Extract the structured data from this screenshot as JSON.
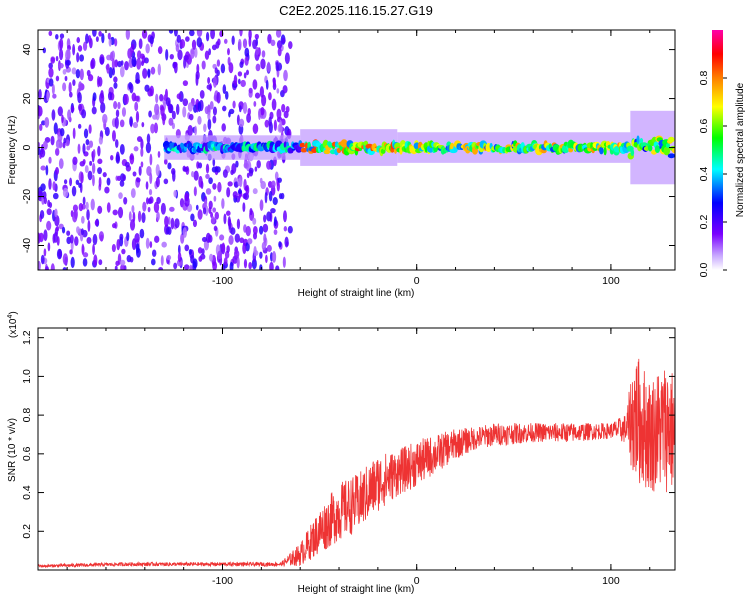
{
  "title": "C2E2.2025.116.15.27.G19",
  "colors": {
    "snr_line": "#ee3333",
    "colormap": [
      "#ffffff",
      "#7a00ff",
      "#0000ff",
      "#00ffff",
      "#00ff00",
      "#ffff00",
      "#ff8000",
      "#ff0000",
      "#ff00aa"
    ]
  },
  "chart_data": [
    {
      "type": "heatmap",
      "xlabel": "Height of straight line (km)",
      "ylabel": "Frequency (Hz)",
      "xlim": [
        -195,
        133
      ],
      "ylim": [
        -50,
        48
      ],
      "x_ticks": [
        -100,
        0,
        100
      ],
      "x_tick_labels": [
        "-100",
        "0",
        "100"
      ],
      "y_ticks": [
        -40,
        -20,
        0,
        20,
        40
      ],
      "y_tick_labels": [
        "-40",
        "-20",
        "0",
        "20",
        "40"
      ],
      "colorbar": {
        "label": "Normalized spectral amplitude",
        "range": [
          0,
          1
        ],
        "ticks": [
          0.0,
          0.2,
          0.4,
          0.6,
          0.8
        ],
        "tick_labels": [
          "0.0",
          "0.2",
          "0.4",
          "0.6",
          "0.8"
        ]
      },
      "regions": [
        {
          "x": [
            -195,
            -65
          ],
          "y": [
            -50,
            48
          ],
          "amplitude": 0.1,
          "description_type": "noise"
        },
        {
          "x": [
            -130,
            -60
          ],
          "y": [
            -2,
            2
          ],
          "amplitude": 0.35
        },
        {
          "x": [
            -60,
            -10
          ],
          "y": [
            -3,
            3
          ],
          "amplitude": 0.6
        },
        {
          "x": [
            -10,
            110
          ],
          "y": [
            -2.5,
            2.5
          ],
          "amplitude": 0.55
        },
        {
          "x": [
            110,
            133
          ],
          "y": [
            -6,
            6
          ],
          "amplitude": 0.5
        }
      ]
    },
    {
      "type": "line",
      "xlabel": "Height of straight line (km)",
      "ylabel": "SNR (10 * v/v)",
      "y_multiplier_label": "(x10",
      "y_multiplier_exp": "4",
      "y_multiplier_close": ")",
      "xlim": [
        -195,
        133
      ],
      "ylim": [
        0,
        1.25
      ],
      "x_ticks": [
        -100,
        0,
        100
      ],
      "x_tick_labels": [
        "-100",
        "0",
        "100"
      ],
      "y_ticks": [
        0.2,
        0.4,
        0.6,
        0.8,
        1.0,
        1.2
      ],
      "y_tick_labels": [
        "0.2",
        "0.4",
        "0.6",
        "0.8",
        "1.0",
        "1.2"
      ],
      "series": [
        {
          "x": [
            -195,
            -150,
            -100,
            -70,
            -60,
            -50,
            -40,
            -30,
            -20,
            -10,
            0,
            10,
            20,
            30,
            40,
            60,
            80,
            100,
            108,
            112,
            120,
            130,
            133
          ],
          "values": [
            0.02,
            0.03,
            0.03,
            0.03,
            0.08,
            0.2,
            0.3,
            0.35,
            0.45,
            0.5,
            0.55,
            0.6,
            0.65,
            0.68,
            0.7,
            0.71,
            0.71,
            0.72,
            0.73,
            0.8,
            0.7,
            0.75,
            0.7
          ],
          "noise": [
            0.008,
            0.01,
            0.01,
            0.01,
            0.06,
            0.12,
            0.15,
            0.15,
            0.15,
            0.12,
            0.12,
            0.1,
            0.08,
            0.06,
            0.06,
            0.05,
            0.05,
            0.04,
            0.08,
            0.35,
            0.3,
            0.35,
            0.3
          ]
        }
      ]
    }
  ]
}
